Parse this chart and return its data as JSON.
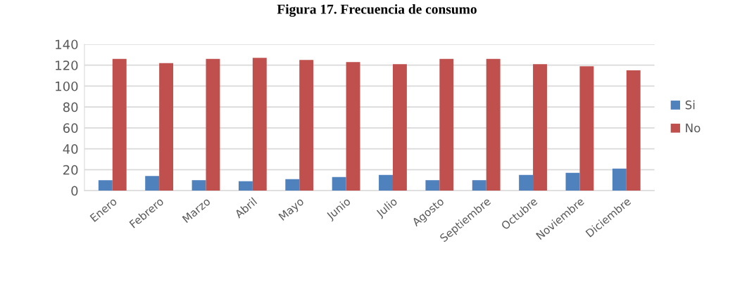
{
  "chart_data": {
    "type": "bar",
    "title": "Figura 17. Frecuencia de consumo",
    "categories": [
      "Enero",
      "Febrero",
      "Marzo",
      "Abril",
      "Mayo",
      "Junio",
      "Julio",
      "Agosto",
      "Septiembre",
      "Octubre",
      "Noviembre",
      "Diciembre"
    ],
    "series": [
      {
        "name": "Si",
        "color": "#4f81bd",
        "values": [
          10,
          14,
          10,
          9,
          11,
          13,
          15,
          10,
          10,
          15,
          17,
          21
        ]
      },
      {
        "name": "No",
        "color": "#c0504d",
        "values": [
          126,
          122,
          126,
          127,
          125,
          123,
          121,
          126,
          126,
          121,
          119,
          115
        ]
      }
    ],
    "ylim": [
      0,
      140
    ],
    "yticks": [
      0,
      20,
      40,
      60,
      80,
      100,
      120,
      140
    ],
    "grid": "y",
    "legend": "right"
  }
}
